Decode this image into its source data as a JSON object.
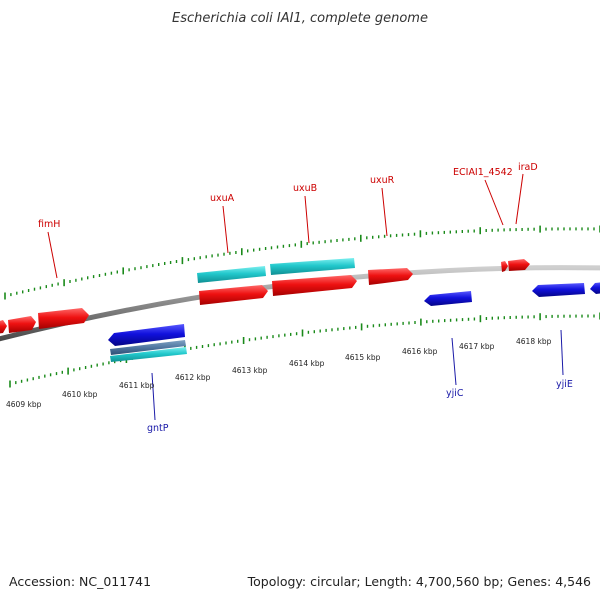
{
  "title": "Escherichia coli IAI1, complete genome",
  "footer": {
    "accession": "Accession: NC_011741",
    "summary": "Topology: circular; Length: 4,700,560 bp; Genes: 4,546"
  },
  "colors": {
    "forward_gene": "#ee1111",
    "reverse_gene": "#1111dd",
    "cds_feature": "#22c8cc",
    "backbone": "#888888",
    "tick": "#1a8a1a",
    "label_red": "#cc0000",
    "label_blue": "#1a1aa8"
  },
  "scale_labels": [
    "4609 kbp",
    "4610 kbp",
    "4611 kbp",
    "4612 kbp",
    "4613 kbp",
    "4614 kbp",
    "4615 kbp",
    "4616 kbp",
    "4617 kbp",
    "4618 kbp"
  ],
  "gene_labels": {
    "fimH": "fimH",
    "uxuA": "uxuA",
    "uxuB": "uxuB",
    "uxuR": "uxuR",
    "ECIAI1_4542": "ECIAI1_4542",
    "iraD": "iraD",
    "gntP": "gntP",
    "yjiC": "yjiC",
    "yjiE": "yjiE"
  }
}
